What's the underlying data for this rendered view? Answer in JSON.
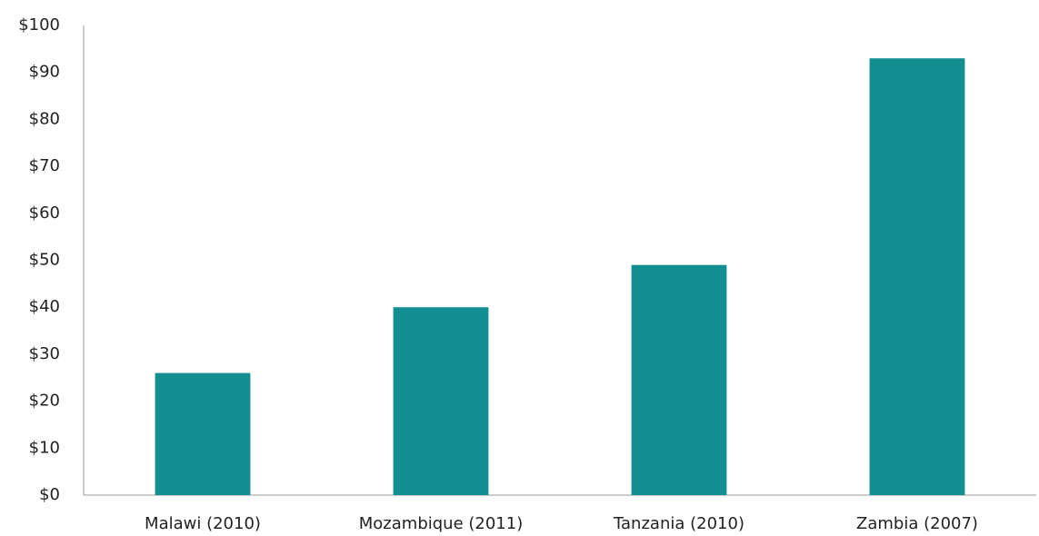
{
  "chart_data": {
    "type": "bar",
    "categories": [
      "Malawi (2010)",
      "Mozambique (2011)",
      "Tanzania (2010)",
      "Zambia (2007)"
    ],
    "values": [
      26,
      40,
      49,
      93
    ],
    "color": "#138f92",
    "ylim": [
      0,
      100
    ],
    "yticks": [
      {
        "value": 0,
        "label": "$0"
      },
      {
        "value": 10,
        "label": "$10"
      },
      {
        "value": 20,
        "label": "$20"
      },
      {
        "value": 30,
        "label": "$30"
      },
      {
        "value": 40,
        "label": "$40"
      },
      {
        "value": 50,
        "label": "$50"
      },
      {
        "value": 60,
        "label": "$60"
      },
      {
        "value": 70,
        "label": "$70"
      },
      {
        "value": 80,
        "label": "$80"
      },
      {
        "value": 90,
        "label": "$90"
      },
      {
        "value": 100,
        "label": "$100"
      }
    ],
    "grid": false
  }
}
